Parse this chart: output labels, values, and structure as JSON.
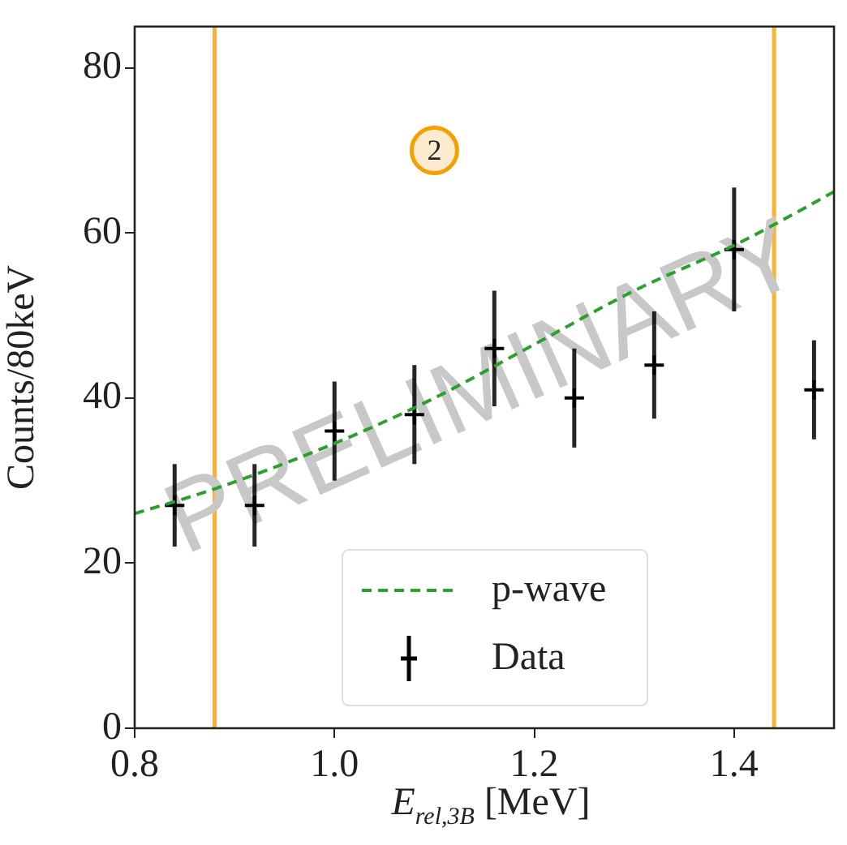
{
  "chart_data": {
    "type": "scatter",
    "xlabel": "E$_{rel,3B}$ [MeV]",
    "ylabel": "Counts/80keV",
    "xlim": [
      0.8,
      1.5
    ],
    "ylim": [
      0,
      85
    ],
    "xticks": [
      0.8,
      {
        "value": 1,
        "label": "1.0"
      },
      1.2,
      1.4
    ],
    "yticks": [
      0,
      20,
      40,
      60,
      80
    ],
    "legend": "bottom",
    "series": [
      {
        "name": "p-wave",
        "type": "line",
        "color": "#2ca02c",
        "line_style": "dashed",
        "marker": "none",
        "x": [
          0.8,
          0.88,
          1.0,
          1.1,
          1.2,
          1.3,
          1.4,
          1.44,
          1.5
        ],
        "values": [
          26,
          29,
          34.5,
          40,
          46.5,
          53,
          58.5,
          61,
          65
        ]
      },
      {
        "name": "Data",
        "type": "scatter",
        "marker": "cross",
        "color": "#000000",
        "x": [
          0.84,
          0.92,
          1.0,
          1.08,
          1.16,
          1.24,
          1.32,
          1.4,
          1.48
        ],
        "values": [
          27,
          27,
          36,
          38,
          46,
          40,
          44,
          58,
          41
        ],
        "errors": [
          5,
          5,
          6,
          6,
          7,
          6,
          6.5,
          7.5,
          6
        ]
      }
    ],
    "ref_lines": [
      {
        "axis": "x",
        "value": 0.88,
        "color": "#f9b233"
      },
      {
        "axis": "x",
        "value": 1.44,
        "color": "#f9b233"
      }
    ],
    "annotations": [
      {
        "text": "2",
        "x": 1.1,
        "y": 70
      },
      "PRELIMINARY"
    ]
  }
}
